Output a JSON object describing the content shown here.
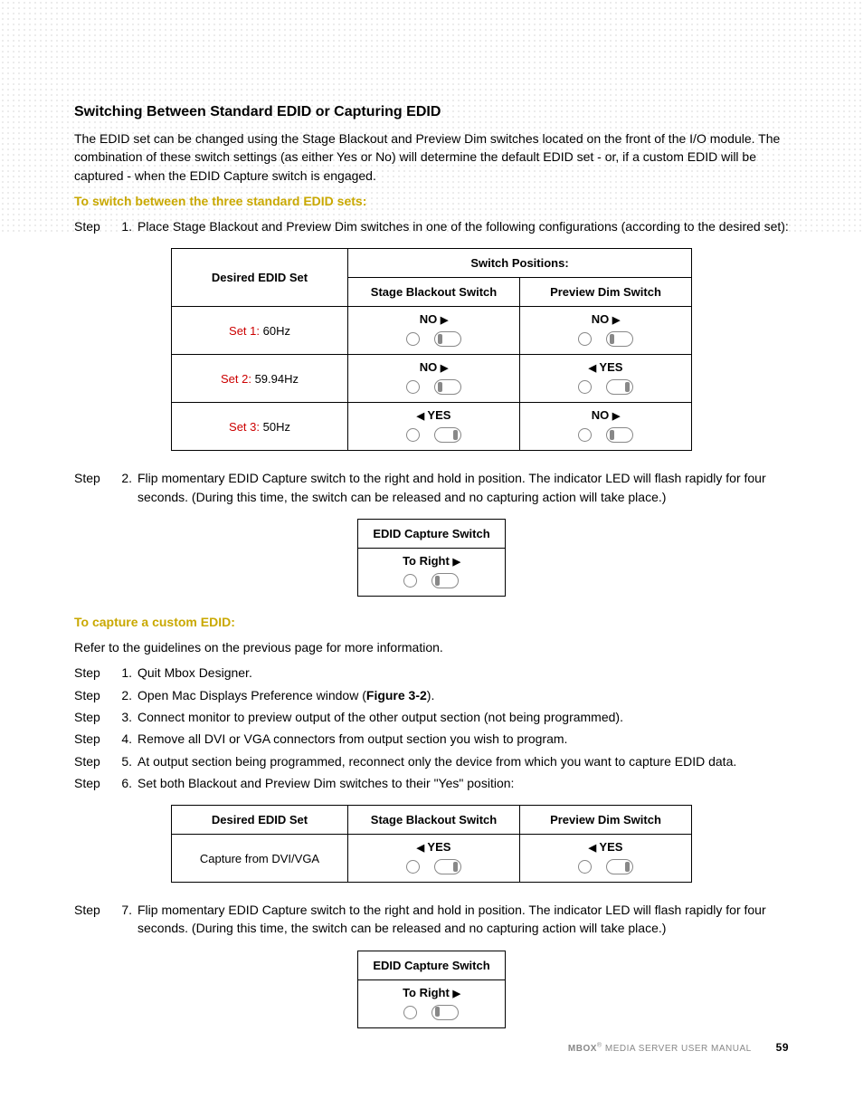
{
  "heading": "Switching Between Standard EDID or Capturing EDID",
  "intro": "The EDID set can be changed using the Stage Blackout and Preview Dim switches located on the front of the I/O module. The combination of these switch settings (as either Yes or No) will determine the default EDID set - or, if a custom EDID will be captured - when the EDID Capture switch is engaged.",
  "sub1": "To switch between the three standard EDID sets:",
  "step1_label": "Step",
  "step1_num": "1.",
  "step1_text": "Place Stage Blackout and Preview Dim switches in one of the following configurations (according to the desired set):",
  "table1": {
    "header_span": "Switch Positions:",
    "col_set": "Desired EDID Set",
    "col_blackout": "Stage Blackout Switch",
    "col_preview": "Preview Dim Switch",
    "rows": [
      {
        "set_label": "Set 1:",
        "set_freq": " 60Hz",
        "blackout": "NO",
        "blackout_dir": "right",
        "blackout_toggle": "left",
        "preview": "NO",
        "preview_dir": "right",
        "preview_toggle": "left"
      },
      {
        "set_label": "Set 2:",
        "set_freq": " 59.94Hz",
        "blackout": "NO",
        "blackout_dir": "right",
        "blackout_toggle": "left",
        "preview": "YES",
        "preview_dir": "left",
        "preview_toggle": "right"
      },
      {
        "set_label": "Set 3:",
        "set_freq": " 50Hz",
        "blackout": "YES",
        "blackout_dir": "left",
        "blackout_toggle": "right",
        "preview": "NO",
        "preview_dir": "right",
        "preview_toggle": "left"
      }
    ]
  },
  "step2_label": "Step",
  "step2_num": "2.",
  "step2_text": "Flip momentary EDID Capture switch to the right and hold in position. The indicator LED will flash rapidly for four seconds. (During this time, the switch can be released and no capturing action will take place.)",
  "capture_box1": {
    "title": "EDID Capture Switch",
    "label": "To Right",
    "toggle": "left"
  },
  "sub2": "To capture a custom EDID:",
  "refer_text": "Refer to the guidelines on the previous page for more information.",
  "steps2": [
    {
      "label": "Step",
      "num": "1.",
      "text": "Quit Mbox Designer."
    },
    {
      "label": "Step",
      "num": "2.",
      "text_pre": "Open Mac Displays Preference window (",
      "fig": "Figure 3-2",
      "text_post": ")."
    },
    {
      "label": "Step",
      "num": "3.",
      "text": "Connect monitor to preview output of the other output section (not being programmed)."
    },
    {
      "label": "Step",
      "num": "4.",
      "text": "Remove all DVI or VGA connectors from output section you wish to program."
    },
    {
      "label": "Step",
      "num": "5.",
      "text": "At output section being programmed, reconnect only the device from which you want to capture EDID data."
    },
    {
      "label": "Step",
      "num": "6.",
      "text": "Set both Blackout and Preview Dim switches to their \"Yes\" position:"
    }
  ],
  "table2": {
    "col_set": "Desired EDID Set",
    "col_blackout": "Stage Blackout Switch",
    "col_preview": "Preview Dim Switch",
    "row": {
      "set_text": "Capture from DVI/VGA",
      "blackout": "YES",
      "blackout_dir": "left",
      "blackout_toggle": "right",
      "preview": "YES",
      "preview_dir": "left",
      "preview_toggle": "right"
    }
  },
  "step7_label": "Step",
  "step7_num": "7.",
  "step7_text": "Flip momentary EDID Capture switch to the right and hold in position. The indicator LED will flash rapidly for four seconds. (During this time, the switch can be released and no capturing action will take place.)",
  "capture_box2": {
    "title": "EDID Capture Switch",
    "label": "To Right",
    "toggle": "left"
  },
  "footer_brand": "MBOX",
  "footer_text": " MEDIA SERVER USER MANUAL",
  "footer_page": "59",
  "colors": {
    "heading_yellow": "#c9a800",
    "set_red": "#cc0000",
    "text": "#000000",
    "border_gray": "#888888",
    "footer_gray": "#888888"
  }
}
